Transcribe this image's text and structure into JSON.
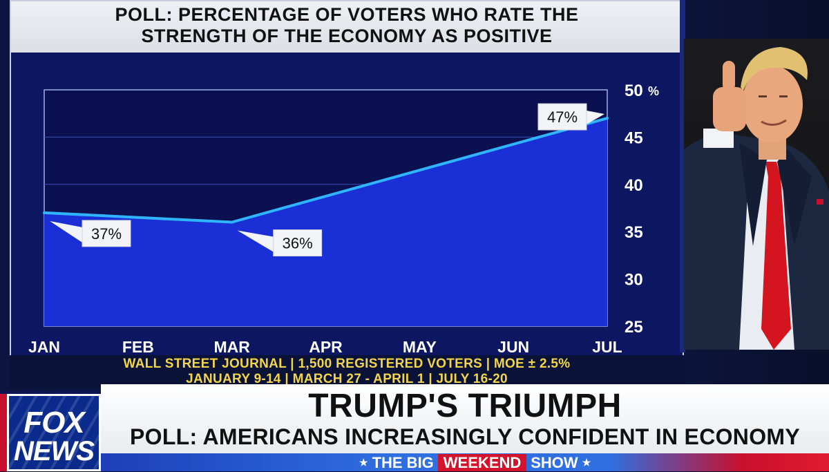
{
  "panel": {
    "title": "POLL: PERCENTAGE OF VOTERS WHO RATE THE\nSTRENGTH OF THE ECONOMY AS POSITIVE"
  },
  "chart_data": {
    "type": "area",
    "title": "POLL: PERCENTAGE OF VOTERS WHO RATE THE STRENGTH OF THE ECONOMY AS POSITIVE",
    "categories": [
      "JAN",
      "FEB",
      "MAR",
      "APR",
      "MAY",
      "JUN",
      "JUL"
    ],
    "y_ticks": [
      25,
      30,
      35,
      40,
      45,
      50
    ],
    "y_top_suffix": "%",
    "ylim": [
      25,
      50
    ],
    "axis_side": "right",
    "grid": true,
    "points": [
      {
        "x": "JAN",
        "y": 37,
        "label": "37%"
      },
      {
        "x": "MAR",
        "y": 36,
        "label": "36%"
      },
      {
        "x": "JUL",
        "y": 47,
        "label": "47%"
      }
    ],
    "fill_color": "#1a2fd6",
    "line_color": "#2fb4ff",
    "background_color": "#0b1150"
  },
  "source": {
    "line1": "WALL STREET JOURNAL | 1,500 REGISTERED VOTERS | MOE ± 2.5%",
    "line2": "JANUARY 9-14 | MARCH 27 - APRIL 1 | JULY 16-20"
  },
  "logo": {
    "line1": "FOX",
    "line2": "NEWS"
  },
  "lower_third": {
    "headline": "TRUMP'S TRIUMPH",
    "subheadline": "POLL: AMERICANS INCREASINGLY CONFIDENT IN ECONOMY"
  },
  "show": {
    "prefix": "THE BIG",
    "middle": "WEEKEND",
    "suffix": "SHOW"
  }
}
